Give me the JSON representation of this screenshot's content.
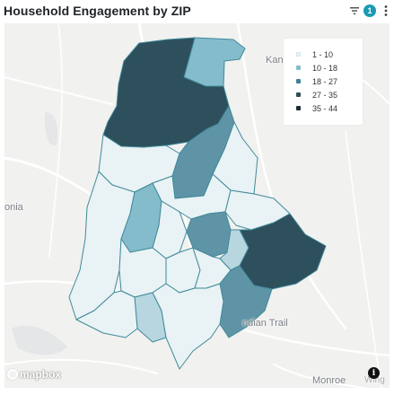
{
  "header": {
    "title": "Household Engagement by ZIP",
    "filter_count": "1"
  },
  "map": {
    "place_labels": {
      "kannapolis": "Kan",
      "gastonia": "onia",
      "indian_trail": "ndian Trail",
      "monroe": "Monroe",
      "wingate": "Wing"
    },
    "attribution": "mapbox",
    "info_label": "i"
  },
  "legend": [
    {
      "label": "1 - 10",
      "color": "#e9f2f5"
    },
    {
      "label": "10 - 18",
      "color": "#85bccc"
    },
    {
      "label": "18 - 27",
      "color": "#3f8096"
    },
    {
      "label": "27 - 35",
      "color": "#2e4f5c"
    },
    {
      "label": "35 - 44",
      "color": "#1c2e37"
    }
  ],
  "colors": {
    "accent": "#1a9bb3",
    "boundary": "#3f8a99"
  }
}
